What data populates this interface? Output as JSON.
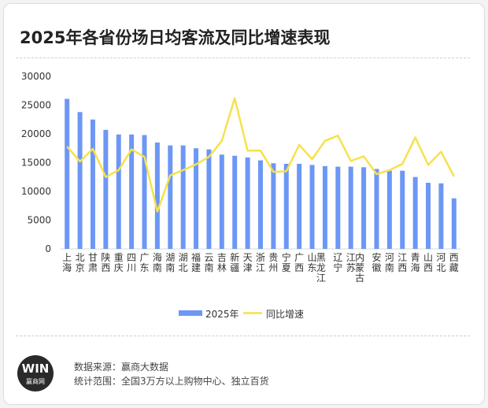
{
  "title": "2025年各省份场日均客流及同比增速表现",
  "legend": {
    "bar_label": "2025年",
    "line_label": "同比增速"
  },
  "colors": {
    "bar": "#6d97f5",
    "line": "#f7e14b",
    "axis": "#d9d9d9",
    "text": "#333333"
  },
  "footer": {
    "source": "数据来源：赢商大数据",
    "scope": "统计范围：全国3万方以上购物中心、独立百货",
    "logo_main": "WIN",
    "logo_sub": "赢商网"
  },
  "chart_data": {
    "type": "bar",
    "title": "",
    "xlabel": "",
    "ylabel": "",
    "ylim": [
      0,
      30000
    ],
    "yticks": [
      0,
      5000,
      10000,
      15000,
      20000,
      25000,
      30000
    ],
    "grid": false,
    "legend_position": "bottom",
    "categories": [
      "上海",
      "北京",
      "甘肃",
      "陕西",
      "重庆",
      "四川",
      "广东",
      "海南",
      "湖南",
      "湖北",
      "福建",
      "云南",
      "吉林",
      "新疆",
      "天津",
      "浙江",
      "贵州",
      "宁夏",
      "广西",
      "山东",
      "黑龙江",
      "辽宁",
      "江苏",
      "内蒙古",
      "安徽",
      "河南",
      "江西",
      "青海",
      "山西",
      "河北",
      "西藏"
    ],
    "series": [
      {
        "name": "2025年",
        "kind": "bar",
        "values": [
          26100,
          23800,
          22500,
          20700,
          19900,
          19900,
          19800,
          18500,
          18000,
          18000,
          17500,
          17300,
          16400,
          16200,
          15900,
          15400,
          14900,
          14800,
          14800,
          14600,
          14400,
          14300,
          14300,
          14200,
          13900,
          13600,
          13600,
          12500,
          11500,
          11400,
          8800
        ]
      },
      {
        "name": "同比增速",
        "kind": "line",
        "values": [
          17800,
          15200,
          17400,
          12500,
          13700,
          17300,
          16000,
          6500,
          12800,
          13700,
          14700,
          16000,
          18800,
          26200,
          17100,
          17100,
          13400,
          13500,
          18100,
          15600,
          18800,
          19700,
          15300,
          16100,
          13000,
          13700,
          14800,
          19400,
          14600,
          16900,
          12600
        ]
      }
    ]
  }
}
